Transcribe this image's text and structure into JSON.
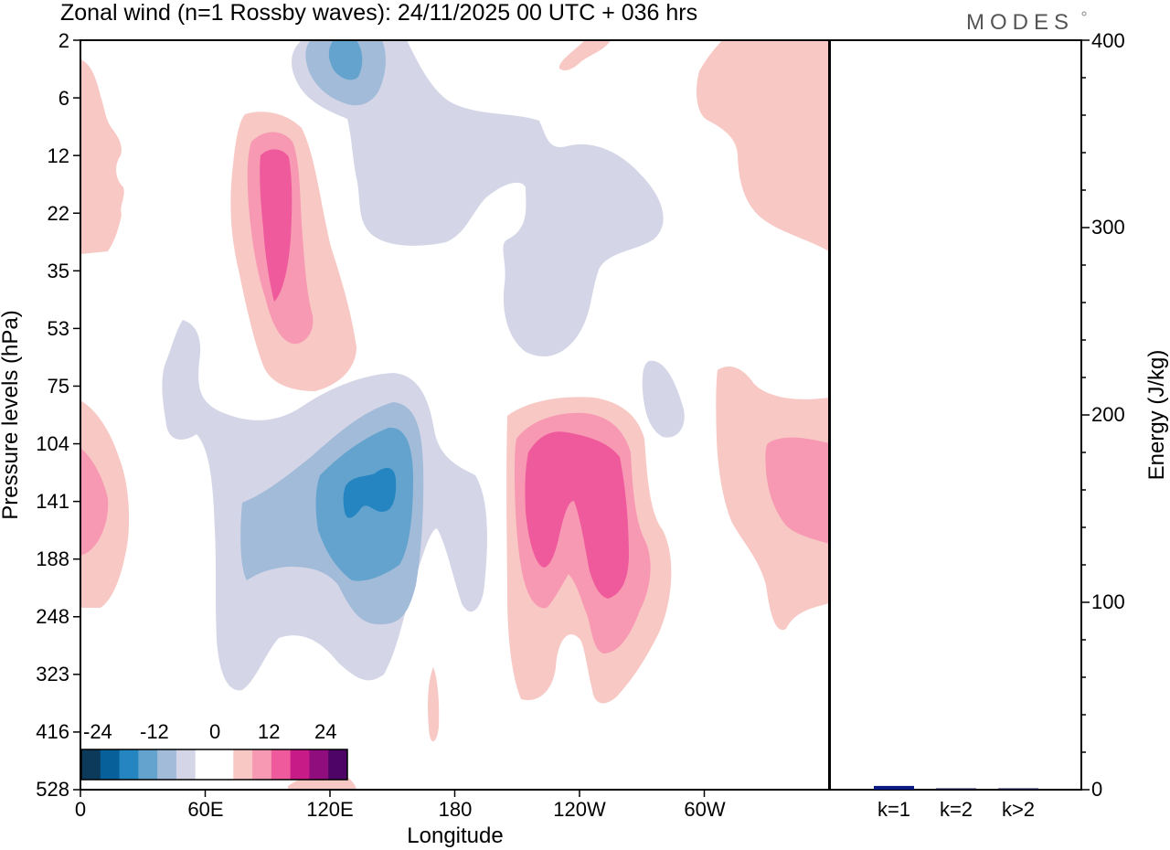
{
  "chart_data": {
    "type": "contour",
    "title": "Zonal wind (n=1 Rossby waves):  24/11/2025  00 UTC  + 036 hrs",
    "logo": "MODES",
    "xlabel": "Longitude",
    "ylabel": "Pressure levels (hPa)",
    "x_ticks": [
      "0",
      "60E",
      "120E",
      "180",
      "120W",
      "60W"
    ],
    "y_ticks": [
      "2",
      "6",
      "12",
      "22",
      "35",
      "53",
      "75",
      "104",
      "141",
      "188",
      "248",
      "323",
      "416",
      "528"
    ],
    "colorbar": {
      "labels": [
        "-24",
        "-12",
        "0",
        "12",
        "24"
      ],
      "colors": [
        "#0b3a5b",
        "#08609a",
        "#2585c0",
        "#63a3cd",
        "#a2bbd9",
        "#d4d6e8",
        "#ffffff",
        "#ffffff",
        "#f8c8c4",
        "#f799b3",
        "#ef5a9c",
        "#c71b87",
        "#8f0d7c",
        "#4e0467"
      ]
    },
    "energy_panel": {
      "ylabel": "Energy (J/kg)",
      "ylim": [
        0,
        400
      ],
      "y_ticks": [
        "0",
        "100",
        "200",
        "300",
        "400"
      ],
      "categories": [
        "k=1",
        "k=2",
        "k>2"
      ],
      "values": [
        2,
        0.6,
        0.7
      ],
      "bar_colors": [
        "#0a1a80",
        "#1a1a40",
        "#1a1a40"
      ]
    },
    "contour_colors": {
      "neg1": "#d4d6e8",
      "neg2": "#a2bbd9",
      "neg3": "#63a3cd",
      "neg4": "#2585c0",
      "pos1": "#f8c8c4",
      "pos2": "#f799b3",
      "pos3": "#ef5a9c"
    }
  }
}
